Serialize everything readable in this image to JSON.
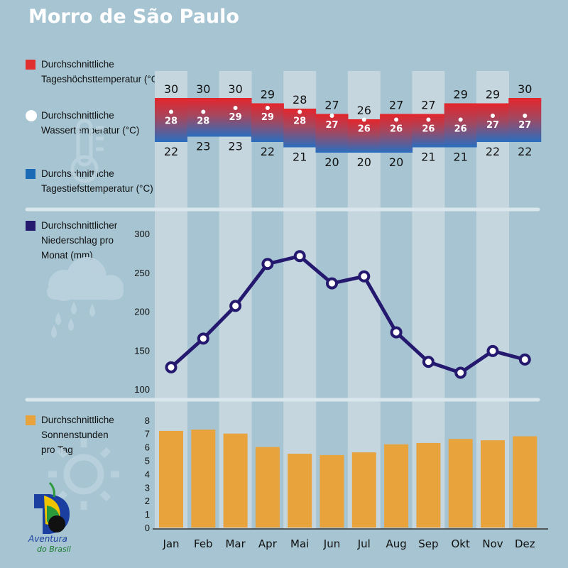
{
  "title": "Morro de São Paulo",
  "legend": {
    "temp_high": {
      "line1": "Durchschnittliche",
      "line2": "Tageshöchsttemperatur (°C)",
      "color": "#e03030"
    },
    "water_temp": {
      "line1": "Durchschnittliche",
      "line2": "Wassertemperatur (°C)",
      "color": "#ffffff"
    },
    "temp_low": {
      "line1": "Durchschnittliche",
      "line2": "Tagestiefsttemperatur (°C)",
      "color": "#1a6ab5"
    },
    "precip": {
      "line1": "Durchschnittlicher",
      "line2": "Niederschlag pro",
      "line3": "Monat (mm)",
      "color": "#24196e"
    },
    "sun": {
      "line1": "Durchschnittliche",
      "line2": "Sonnenstunden",
      "line3": "pro Tag",
      "color": "#e8a33c"
    }
  },
  "logo": {
    "line1": "Aventura",
    "line2": "do Brasil"
  },
  "chart_data": [
    {
      "type": "bar",
      "name": "temperature",
      "categories": [
        "Jan",
        "Feb",
        "Mar",
        "Apr",
        "Mai",
        "Jun",
        "Jul",
        "Aug",
        "Sep",
        "Okt",
        "Nov",
        "Dez"
      ],
      "series": [
        {
          "name": "Durchschnittliche Tageshöchsttemperatur (°C)",
          "values": [
            30,
            30,
            30,
            29,
            28,
            27,
            26,
            27,
            27,
            29,
            29,
            30
          ]
        },
        {
          "name": "Durchschnittliche Wassertemperatur (°C)",
          "values": [
            28,
            28,
            29,
            29,
            28,
            27,
            26,
            26,
            26,
            26,
            27,
            27
          ]
        },
        {
          "name": "Durchschnittliche Tagestiefsttemperatur (°C)",
          "values": [
            22,
            23,
            23,
            22,
            21,
            20,
            20,
            20,
            21,
            21,
            22,
            22
          ]
        }
      ]
    },
    {
      "type": "line",
      "name": "precipitation",
      "categories": [
        "Jan",
        "Feb",
        "Mar",
        "Apr",
        "Mai",
        "Jun",
        "Jul",
        "Aug",
        "Sep",
        "Okt",
        "Nov",
        "Dez"
      ],
      "series": [
        {
          "name": "Durchschnittlicher Niederschlag pro Monat (mm)",
          "values": [
            128,
            165,
            207,
            261,
            271,
            236,
            245,
            173,
            135,
            121,
            149,
            138
          ]
        }
      ],
      "yticks": [
        100,
        150,
        200,
        250,
        300
      ],
      "ylim": [
        100,
        300
      ],
      "color": "#24196e"
    },
    {
      "type": "bar",
      "name": "sunshine",
      "categories": [
        "Jan",
        "Feb",
        "Mar",
        "Apr",
        "Mai",
        "Jun",
        "Jul",
        "Aug",
        "Sep",
        "Okt",
        "Nov",
        "Dez"
      ],
      "series": [
        {
          "name": "Durchschnittliche Sonnenstunden pro Tag",
          "values": [
            7.2,
            7.3,
            7.0,
            6.0,
            5.5,
            5.4,
            5.6,
            6.2,
            6.3,
            6.6,
            6.5,
            6.8
          ]
        }
      ],
      "yticks": [
        0,
        1,
        2,
        3,
        4,
        5,
        6,
        7,
        8
      ],
      "ylim": [
        0,
        8
      ],
      "color": "#e8a33c"
    }
  ]
}
